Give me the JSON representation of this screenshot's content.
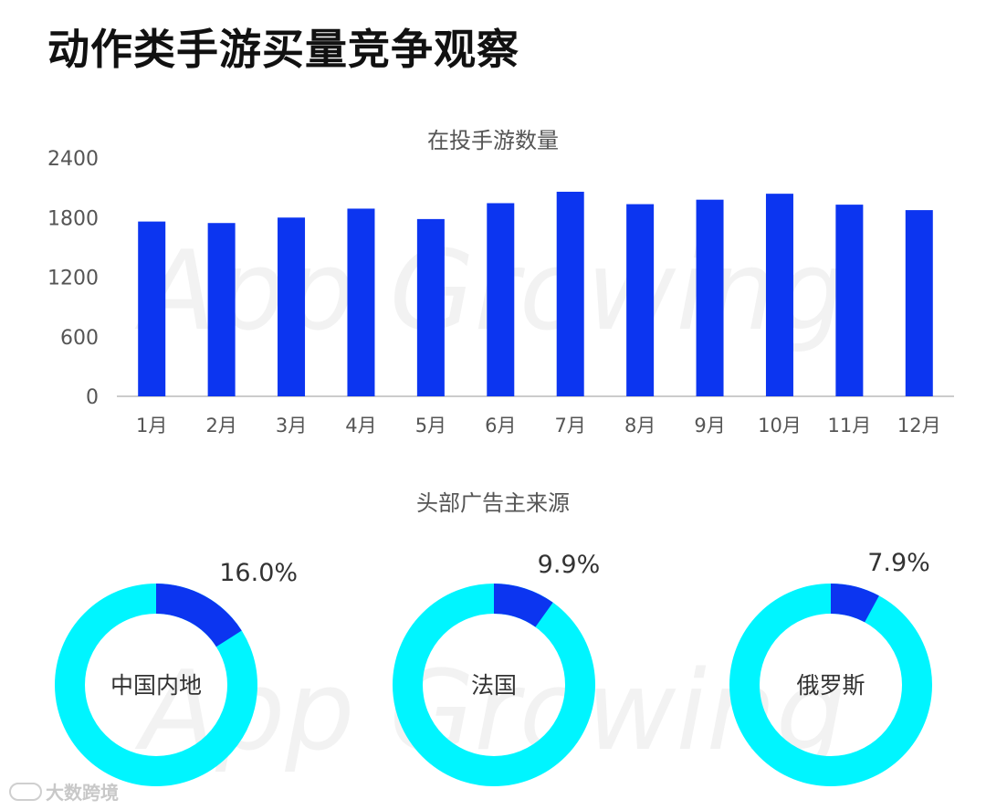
{
  "page": {
    "title": "动作类手游买量竞争观察"
  },
  "watermark": {
    "brand": "App Growing",
    "bottom_left": "大数跨境"
  },
  "colors": {
    "bar": "#0c35f0",
    "donut_highlight": "#0c35f0",
    "donut_rest": "#00f5ff",
    "axis_text": "#555555"
  },
  "chart_data": [
    {
      "type": "bar",
      "title": "在投手游数量",
      "categories": [
        "1月",
        "2月",
        "3月",
        "4月",
        "5月",
        "6月",
        "7月",
        "8月",
        "9月",
        "10月",
        "11月",
        "12月"
      ],
      "values": [
        1760,
        1745,
        1800,
        1890,
        1785,
        1945,
        2060,
        1935,
        1980,
        2040,
        1930,
        1875
      ],
      "yticks": [
        0,
        600,
        1200,
        1800,
        2400
      ],
      "ylim": [
        0,
        2400
      ],
      "grid": false,
      "xlabel": "",
      "ylabel": ""
    },
    {
      "type": "pie",
      "title": "头部广告主来源",
      "slices": [
        {
          "label": "中国内地",
          "value": 16.0,
          "value_label": "16.0%"
        },
        {
          "label": "法国",
          "value": 9.9,
          "value_label": "9.9%"
        },
        {
          "label": "俄罗斯",
          "value": 7.9,
          "value_label": "7.9%"
        }
      ]
    }
  ]
}
